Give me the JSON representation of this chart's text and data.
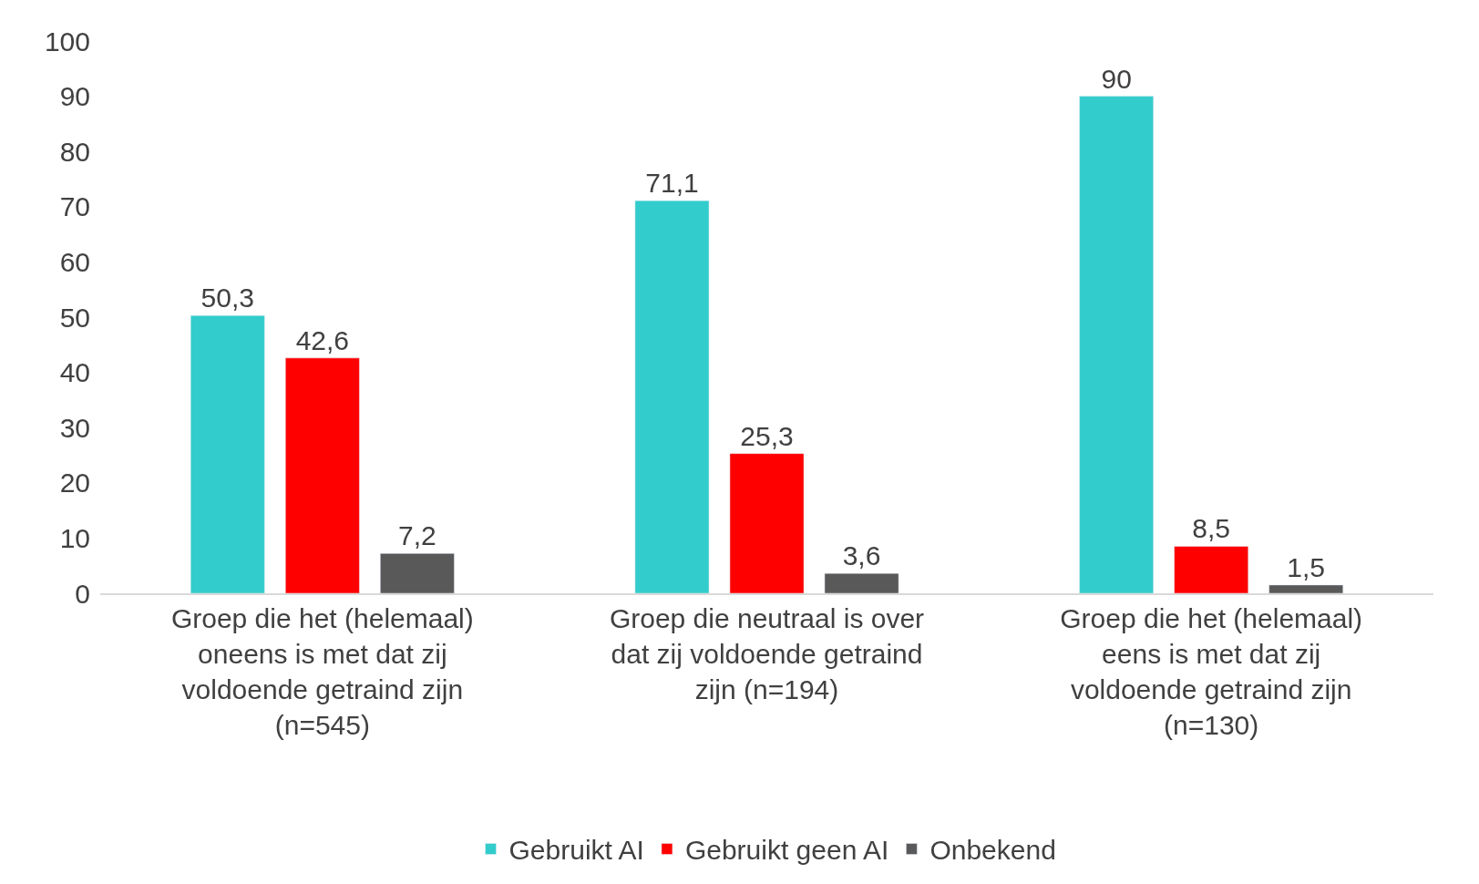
{
  "chart_data": {
    "type": "bar",
    "categories": [
      "Groep die het (helemaal) oneens is met dat zij voldoende getraind zijn (n=545)",
      "Groep die neutraal is over dat zij voldoende getraind zijn (n=194)",
      "Groep die het (helemaal) eens is met dat zij voldoende getraind zijn (n=130)"
    ],
    "series": [
      {
        "name": "Gebruikt AI",
        "color": "#33cccc",
        "values": [
          50.3,
          71.1,
          90
        ],
        "value_labels": [
          "50,3",
          "71,1",
          "90"
        ]
      },
      {
        "name": "Gebruikt geen AI",
        "color": "#ff0000",
        "values": [
          42.6,
          25.3,
          8.5
        ],
        "value_labels": [
          "42,6",
          "25,3",
          "8,5"
        ]
      },
      {
        "name": "Onbekend",
        "color": "#595959",
        "values": [
          7.2,
          3.6,
          1.5
        ],
        "value_labels": [
          "7,2",
          "3,6",
          "1,5"
        ]
      }
    ],
    "ylim": [
      0,
      100
    ],
    "yticks": [
      0,
      10,
      20,
      30,
      40,
      50,
      60,
      70,
      80,
      90,
      100
    ],
    "legend": "bottom"
  }
}
